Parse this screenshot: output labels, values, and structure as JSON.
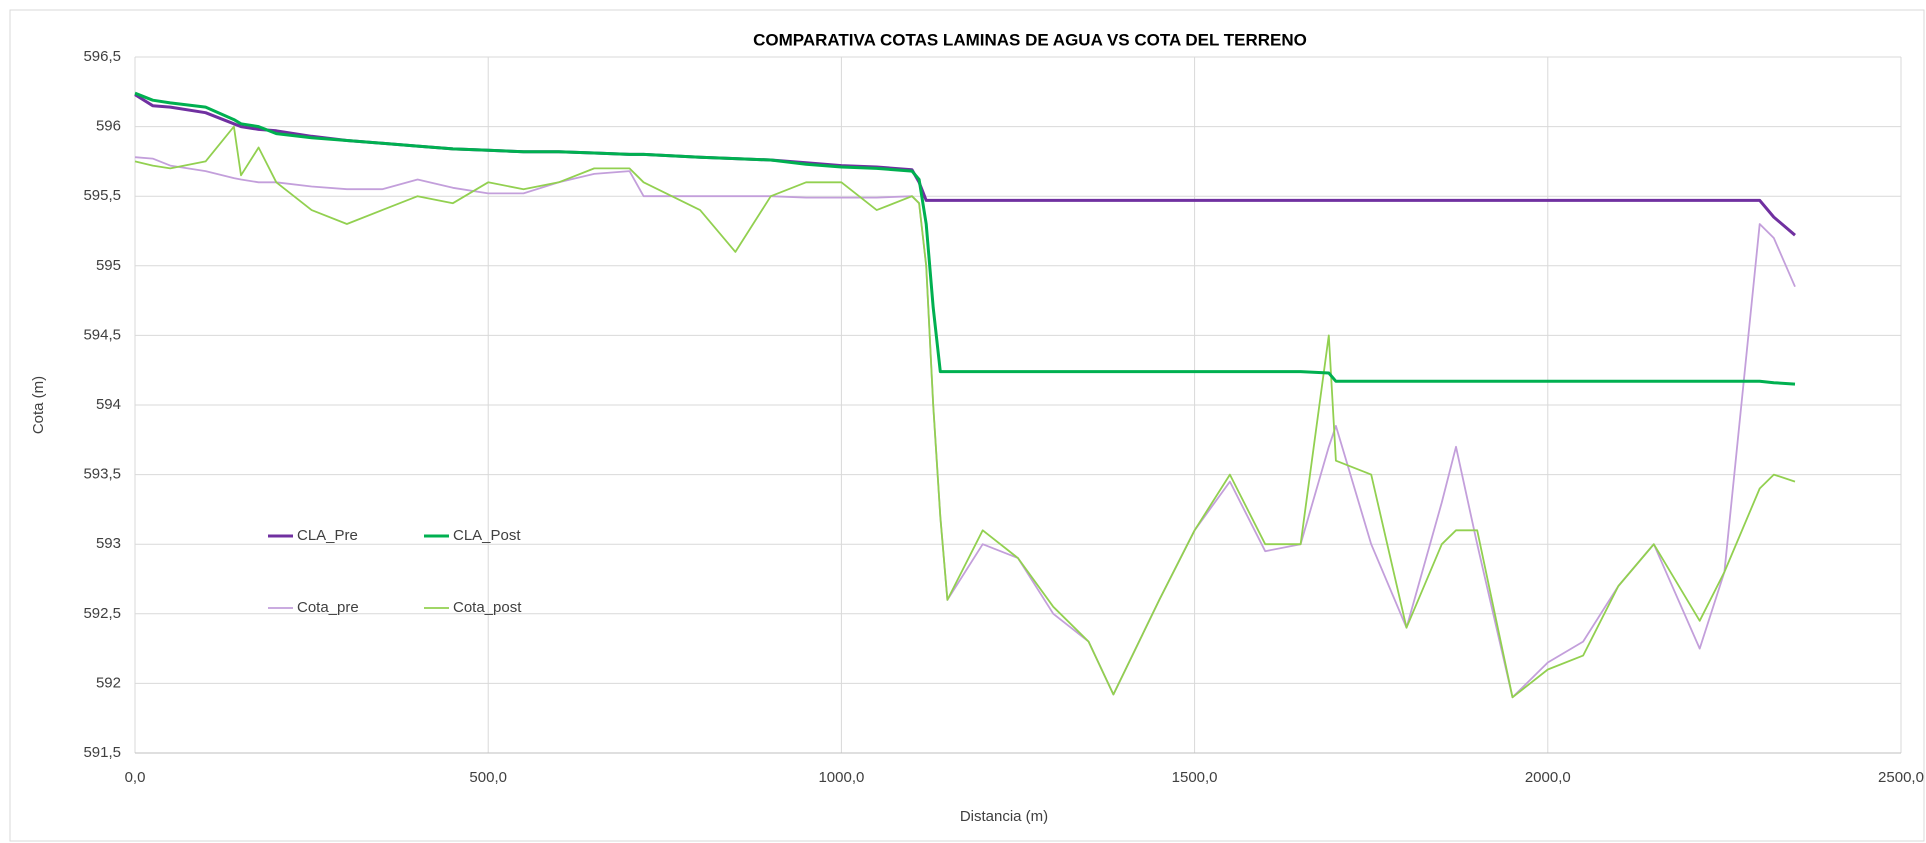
{
  "chart_data": {
    "type": "line",
    "title": "COMPARATIVA COTAS LAMINAS DE AGUA VS COTA DEL TERRENO",
    "x_label": "Distancia (m)",
    "y_label": "Cota (m)",
    "x": [
      0,
      25,
      50,
      100,
      140,
      150,
      175,
      200,
      250,
      300,
      350,
      400,
      450,
      500,
      550,
      600,
      650,
      700,
      720,
      800,
      850,
      900,
      950,
      1000,
      1050,
      1100,
      1110,
      1120,
      1130,
      1140,
      1150,
      1200,
      1250,
      1300,
      1350,
      1385,
      1450,
      1500,
      1550,
      1600,
      1650,
      1690,
      1700,
      1750,
      1800,
      1850,
      1870,
      1900,
      1950,
      2000,
      2050,
      2100,
      2150,
      2215,
      2250,
      2300,
      2320,
      2350
    ],
    "series": [
      {
        "name": "CLA_Pre",
        "color": "#7030a0",
        "width": 3,
        "values": [
          596.23,
          596.15,
          596.14,
          596.1,
          596.02,
          596.0,
          595.98,
          595.97,
          595.93,
          595.9,
          595.88,
          595.86,
          595.84,
          595.83,
          595.82,
          595.82,
          595.81,
          595.8,
          595.8,
          595.78,
          595.77,
          595.76,
          595.74,
          595.72,
          595.71,
          595.69,
          595.6,
          595.47,
          595.47,
          595.47,
          595.47,
          595.47,
          595.47,
          595.47,
          595.47,
          595.47,
          595.47,
          595.47,
          595.47,
          595.47,
          595.47,
          595.47,
          595.47,
          595.47,
          595.47,
          595.47,
          595.47,
          595.47,
          595.47,
          595.47,
          595.47,
          595.47,
          595.47,
          595.47,
          595.47,
          595.47,
          595.35,
          595.22
        ]
      },
      {
        "name": "CLA_Post",
        "color": "#00b050",
        "width": 3,
        "values": [
          596.24,
          596.19,
          596.17,
          596.14,
          596.05,
          596.02,
          596.0,
          595.95,
          595.92,
          595.9,
          595.88,
          595.86,
          595.84,
          595.83,
          595.82,
          595.82,
          595.81,
          595.8,
          595.8,
          595.78,
          595.77,
          595.76,
          595.73,
          595.71,
          595.7,
          595.68,
          595.62,
          595.3,
          594.7,
          594.24,
          594.24,
          594.24,
          594.24,
          594.24,
          594.24,
          594.24,
          594.24,
          594.24,
          594.24,
          594.24,
          594.24,
          594.23,
          594.17,
          594.17,
          594.17,
          594.17,
          594.17,
          594.17,
          594.17,
          594.17,
          594.17,
          594.17,
          594.17,
          594.17,
          594.17,
          594.17,
          594.16,
          594.15
        ]
      },
      {
        "name": "Cota_pre",
        "color": "#c39fdb",
        "width": 1.8,
        "values": [
          595.78,
          595.77,
          595.72,
          595.68,
          595.63,
          595.62,
          595.6,
          595.6,
          595.57,
          595.55,
          595.55,
          595.62,
          595.56,
          595.52,
          595.52,
          595.6,
          595.66,
          595.68,
          595.5,
          595.5,
          595.5,
          595.5,
          595.49,
          595.49,
          595.49,
          595.5,
          595.45,
          595.0,
          594.0,
          593.2,
          592.6,
          593.0,
          592.9,
          592.5,
          592.3,
          591.92,
          592.6,
          593.1,
          593.45,
          592.95,
          593.0,
          593.7,
          593.85,
          593.0,
          592.4,
          593.3,
          593.7,
          593.0,
          591.9,
          592.15,
          592.3,
          592.7,
          593.0,
          592.25,
          592.8,
          595.3,
          595.2,
          594.85
        ]
      },
      {
        "name": "Cota_post",
        "color": "#92d050",
        "width": 1.8,
        "values": [
          595.75,
          595.72,
          595.7,
          595.75,
          596.0,
          595.65,
          595.85,
          595.6,
          595.4,
          595.3,
          595.4,
          595.5,
          595.45,
          595.6,
          595.55,
          595.6,
          595.7,
          595.7,
          595.6,
          595.4,
          595.1,
          595.5,
          595.6,
          595.6,
          595.4,
          595.5,
          595.45,
          595.0,
          594.0,
          593.2,
          592.6,
          593.1,
          592.9,
          592.55,
          592.3,
          591.92,
          592.6,
          593.1,
          593.5,
          593.0,
          593.0,
          594.5,
          593.6,
          593.5,
          592.4,
          593.0,
          593.1,
          593.1,
          591.9,
          592.1,
          592.2,
          592.7,
          593.0,
          592.45,
          592.8,
          593.4,
          593.5,
          593.45
        ]
      }
    ],
    "xlim": [
      0,
      2500
    ],
    "xticks": [
      {
        "value": 0,
        "label": "0,0"
      },
      {
        "value": 500,
        "label": "500,0"
      },
      {
        "value": 1000,
        "label": "1000,0"
      },
      {
        "value": 1500,
        "label": "1500,0"
      },
      {
        "value": 2000,
        "label": "2000,0"
      },
      {
        "value": 2500,
        "label": "2500,0"
      }
    ],
    "ylim": [
      591.5,
      596.5
    ],
    "yticks": [
      {
        "value": 591.5,
        "label": "591,5"
      },
      592,
      {
        "value": 592.5,
        "label": "592,5"
      },
      593,
      {
        "value": 593.5,
        "label": "593,5"
      },
      594,
      {
        "value": 594.5,
        "label": "594,5"
      },
      595,
      {
        "value": 595.5,
        "label": "595,5"
      },
      596,
      {
        "value": 596.5,
        "label": "596,5"
      }
    ],
    "grid": true,
    "legend": "left"
  }
}
